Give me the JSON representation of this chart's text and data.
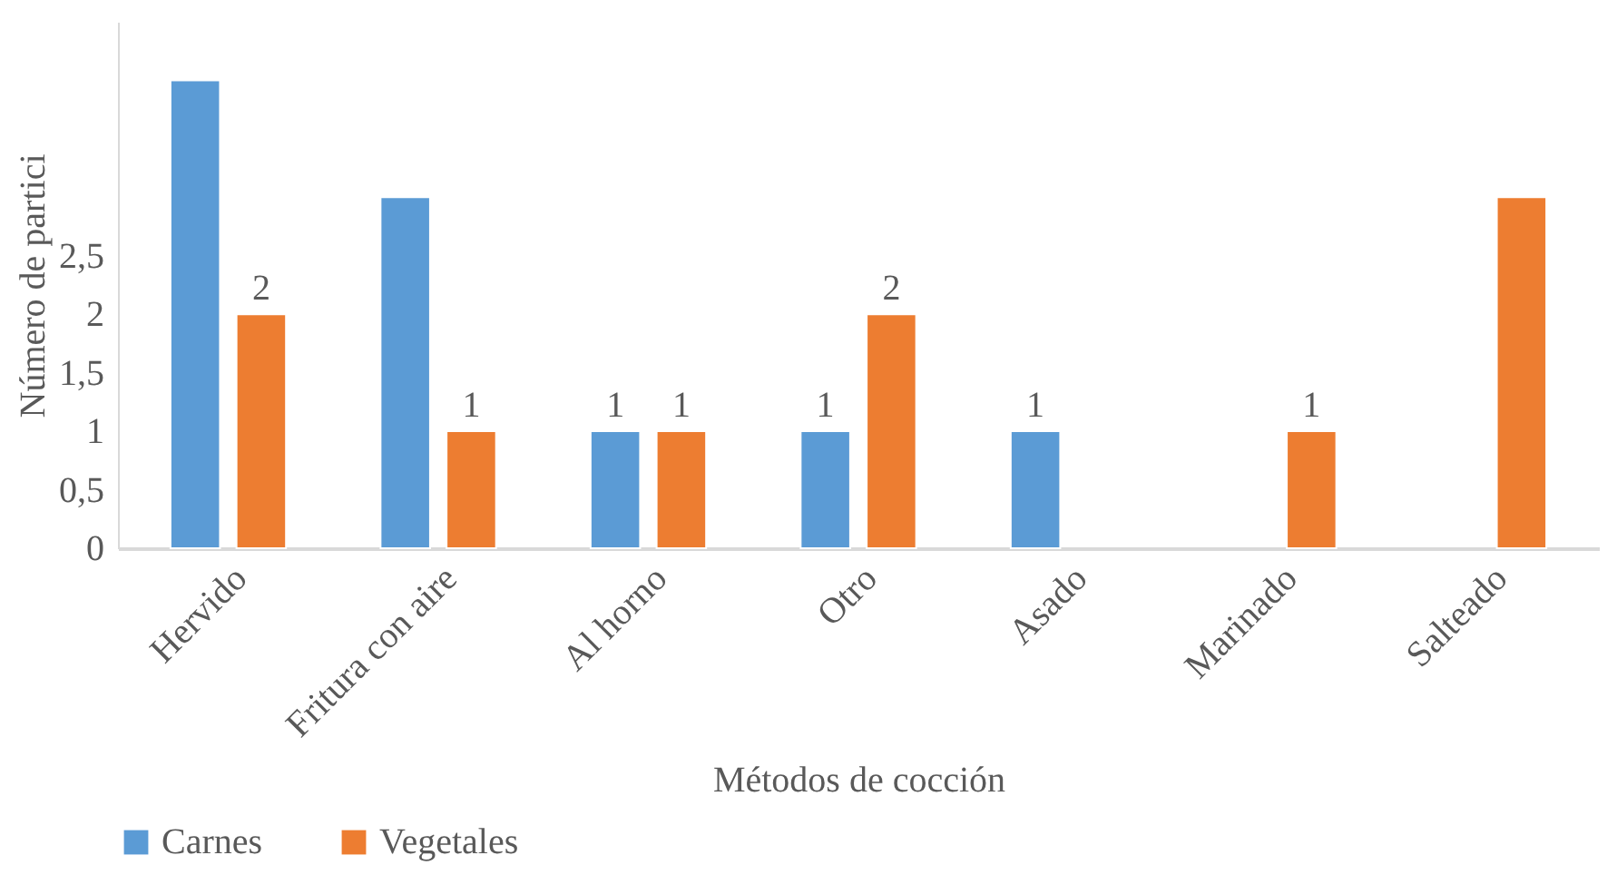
{
  "chart_data": {
    "type": "bar",
    "xlabel": "Métodos de cocción",
    "ylabel": "Número de partici",
    "categories": [
      "Hervido",
      "Fritura con aire",
      "Al horno",
      "Otro",
      "Asado",
      "Marinado",
      "Salteado"
    ],
    "series": [
      {
        "name": "Carnes",
        "color": "#5b9bd5",
        "values": [
          4,
          3,
          1,
          1,
          1,
          null,
          null
        ],
        "value_labels": [
          null,
          null,
          "1",
          "1",
          "1",
          null,
          null
        ]
      },
      {
        "name": "Vegetales",
        "color": "#ed7d31",
        "values": [
          2,
          1,
          1,
          2,
          null,
          1,
          3
        ],
        "value_labels": [
          "2",
          "1",
          "1",
          "2",
          null,
          "1",
          null
        ]
      }
    ],
    "ylim": [
      0,
      4.5
    ],
    "yticks": [
      0,
      {
        "value": 0.5,
        "label": "0,5"
      },
      1,
      {
        "value": 1.5,
        "label": "1,5"
      },
      2,
      {
        "value": 2.5,
        "label": "2,5"
      }
    ],
    "legend": "bottom"
  }
}
